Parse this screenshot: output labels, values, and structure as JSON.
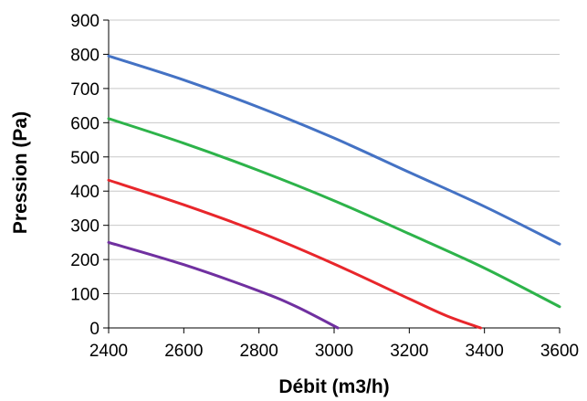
{
  "chart_data": {
    "type": "line",
    "title": "",
    "xlabel": "Débit (m3/h)",
    "ylabel": "Pression (Pa)",
    "xlim": [
      2400,
      3600
    ],
    "ylim": [
      0,
      900
    ],
    "x_ticks": [
      2400,
      2600,
      2800,
      3000,
      3200,
      3400,
      3600
    ],
    "y_ticks": [
      0,
      100,
      200,
      300,
      400,
      500,
      600,
      700,
      800,
      900
    ],
    "grid": "horizontal",
    "legend": "none",
    "series": [
      {
        "color": "#4472C4",
        "x": [
          2400,
          2600,
          2800,
          3000,
          3200,
          3400,
          3600
        ],
        "y": [
          795,
          725,
          645,
          555,
          455,
          355,
          245
        ]
      },
      {
        "color": "#2DB34A",
        "x": [
          2400,
          2600,
          2800,
          3000,
          3200,
          3400,
          3600
        ],
        "y": [
          612,
          540,
          460,
          372,
          275,
          175,
          62
        ]
      },
      {
        "color": "#E8262B",
        "x": [
          2400,
          2600,
          2800,
          3000,
          3200,
          3300,
          3390
        ],
        "y": [
          432,
          360,
          280,
          187,
          85,
          35,
          0
        ]
      },
      {
        "color": "#7030A0",
        "x": [
          2400,
          2600,
          2800,
          2900,
          3010
        ],
        "y": [
          250,
          185,
          108,
          62,
          0
        ]
      }
    ]
  }
}
